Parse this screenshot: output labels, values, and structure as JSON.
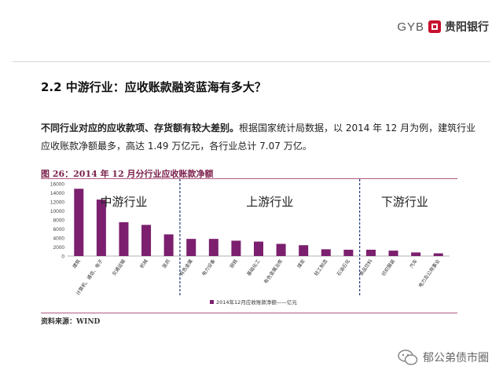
{
  "header": {
    "logo_latin": "GYB",
    "logo_name": "贵阳银行"
  },
  "section_title": "2.2 中游行业：应收账款融资蓝海有多大？",
  "paragraph": {
    "bold": "不同行业对应的应收款项、存货额有较大差别。",
    "rest": "根据国家统计局数据，以 2014 年 12 月为例，建筑行业应收账款净额最多，高达 1.49 万亿元，各行业总计 7.07 万亿。"
  },
  "figure": {
    "title": "图 26：2014 年 12 月分行业应收账款净额",
    "source": "资料来源：WIND"
  },
  "watermark": "郁公弟债市圈",
  "chart_data": {
    "type": "bar",
    "title": "",
    "xlabel": "",
    "ylabel": "",
    "ylim": [
      0,
      16000
    ],
    "yticks": [
      0,
      2000,
      4000,
      6000,
      8000,
      10000,
      12000,
      14000,
      16000
    ],
    "categories": [
      "建筑",
      "计算机、通信、电子",
      "交通运输",
      "机械",
      "医药",
      "有色金属",
      "电力设备",
      "钢铁",
      "基础化工",
      "有色金属冶炼",
      "煤炭",
      "轻工制造",
      "石油石化",
      "食品饮料",
      "纺织服装",
      "汽车",
      "电力及公用事业"
    ],
    "series": [
      {
        "name": "2014年12月应收账款净额——亿元",
        "values": [
          14900,
          12500,
          7500,
          6900,
          4800,
          3800,
          3800,
          3400,
          3200,
          2700,
          2400,
          1500,
          1400,
          1400,
          1200,
          800,
          600
        ]
      }
    ],
    "groups": [
      {
        "label": "中游行业",
        "start": 0,
        "end": 4
      },
      {
        "label": "上游行业",
        "start": 5,
        "end": 12
      },
      {
        "label": "下游行业",
        "start": 13,
        "end": 16
      }
    ],
    "bar_color": "#7b1f6e",
    "divider_color": "#1f3d7a",
    "grid": false,
    "legend_position": "bottom"
  }
}
